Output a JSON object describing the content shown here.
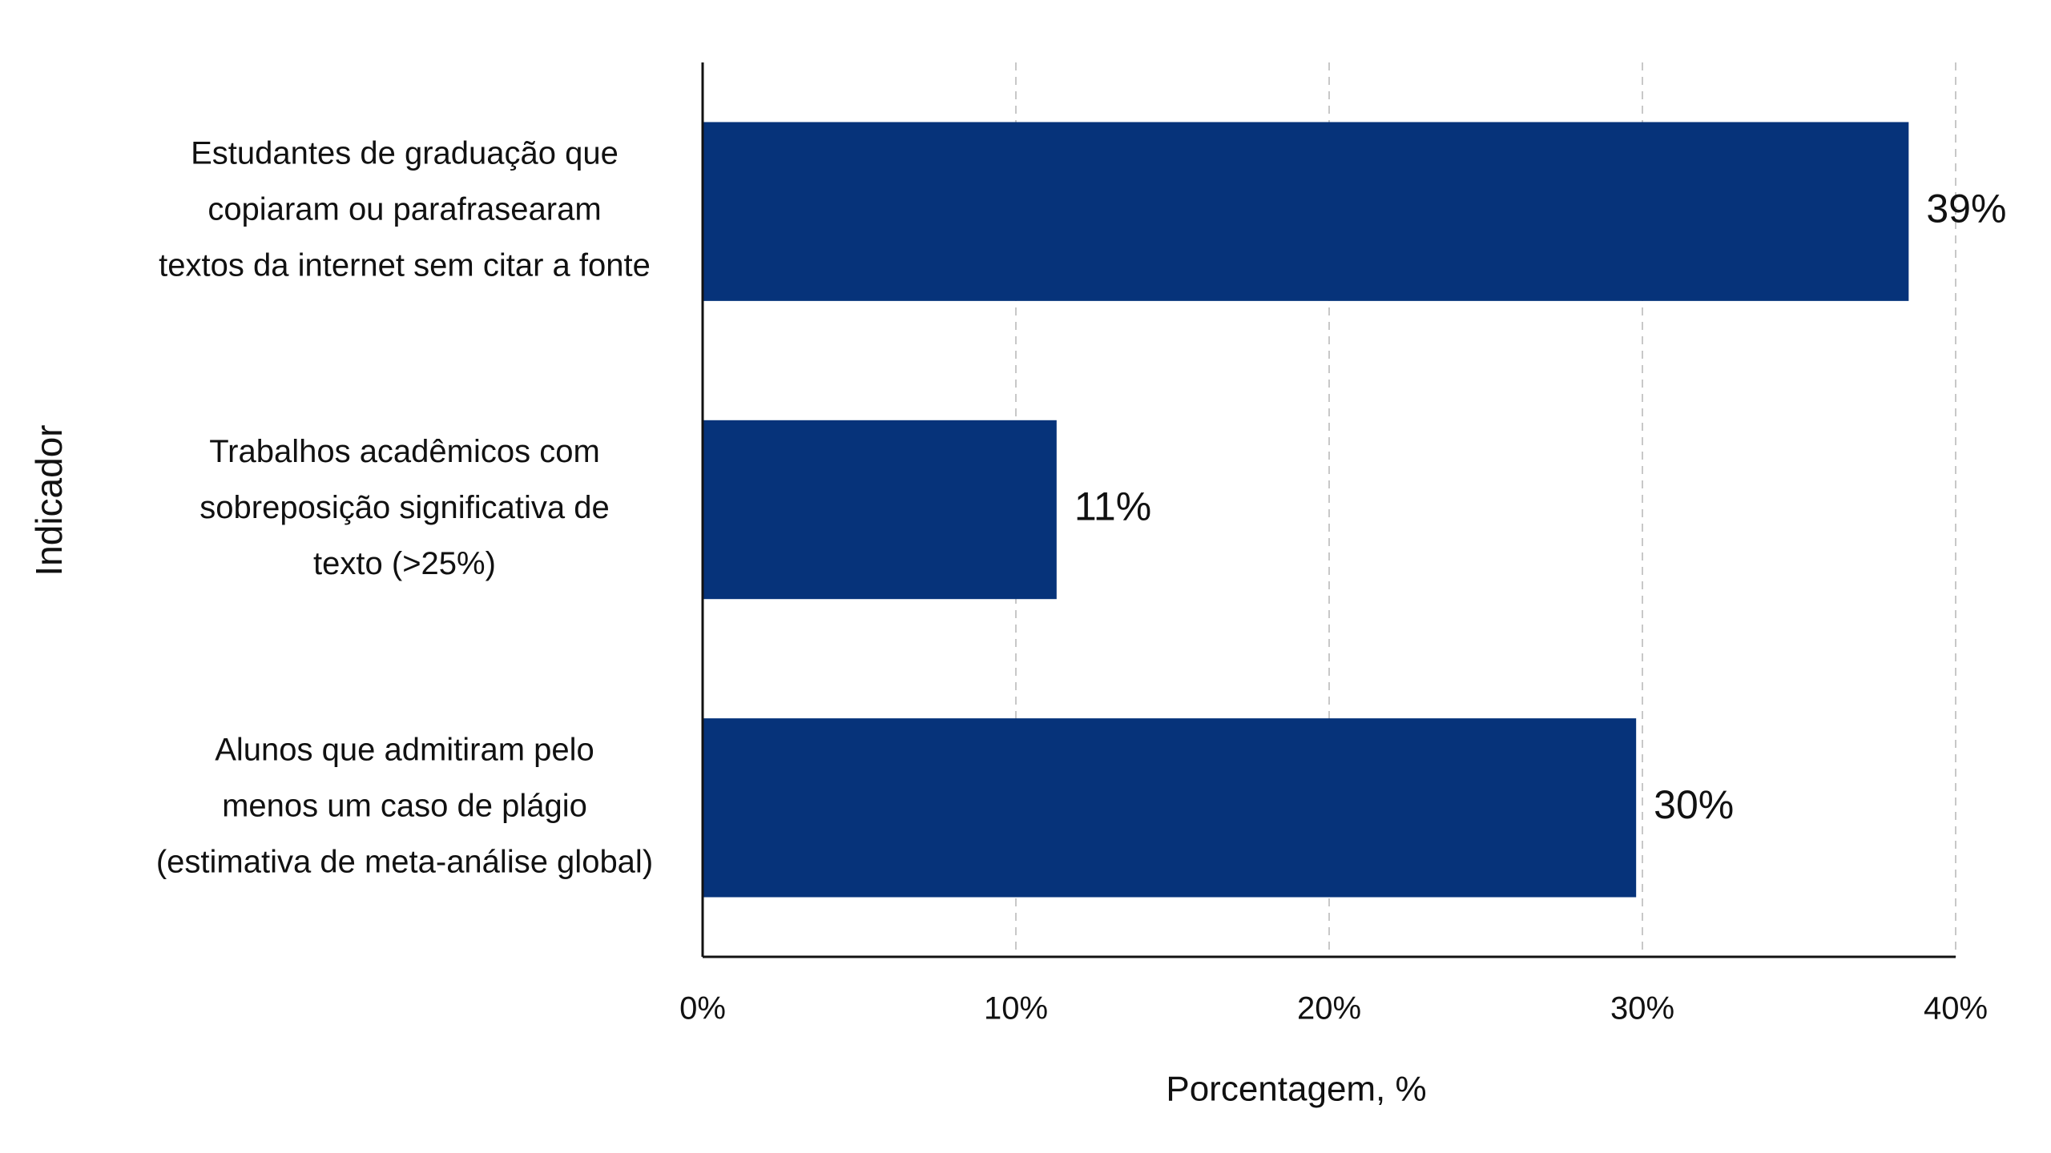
{
  "chart_data": {
    "type": "barh",
    "xlabel": "Porcentagem, %",
    "ylabel": "Indicador",
    "categories": [
      [
        "Estudantes de graduação que",
        "copiaram ou parafrasearam",
        "textos da internet sem citar a fonte"
      ],
      [
        "Trabalhos acadêmicos com",
        "sobreposição significativa de",
        "texto (>25%)"
      ],
      [
        "Alunos que admitiram pelo",
        "menos um caso de plágio",
        "(estimativa de meta-análise global)"
      ]
    ],
    "values": [
      38.5,
      11.3,
      29.8
    ],
    "value_labels": [
      "39%",
      "11%",
      "30%"
    ],
    "color": "#06337a",
    "xlim": [
      0,
      40
    ],
    "xticks": [
      {
        "value": 0,
        "label": "0%"
      },
      {
        "value": 10,
        "label": "10%"
      },
      {
        "value": 20,
        "label": "20%"
      },
      {
        "value": 30,
        "label": "30%"
      },
      {
        "value": 40,
        "label": "40%"
      }
    ],
    "grid": true
  }
}
